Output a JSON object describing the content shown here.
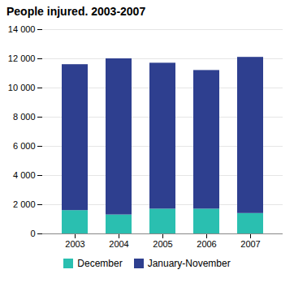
{
  "chart_data": {
    "type": "bar",
    "stacked": true,
    "title": "People injured. 2003-2007",
    "categories": [
      "2003",
      "2004",
      "2005",
      "2006",
      "2007"
    ],
    "series": [
      {
        "name": "December",
        "color": "#2abfb0",
        "values": [
          1600,
          1300,
          1700,
          1700,
          1400
        ]
      },
      {
        "name": "January-November",
        "color": "#2e3f8f",
        "values": [
          10000,
          10700,
          10000,
          9500,
          10700
        ]
      }
    ],
    "ylim": [
      0,
      14000
    ],
    "yticks": [
      0,
      {
        "value": 2000,
        "label": "2 000"
      },
      {
        "value": 4000,
        "label": "4 000"
      },
      {
        "value": 6000,
        "label": "6 000"
      },
      {
        "value": 8000,
        "label": "8 000"
      },
      {
        "value": 10000,
        "label": "10 000"
      },
      {
        "value": 12000,
        "label": "12 000"
      },
      {
        "value": 14000,
        "label": "14 000"
      }
    ],
    "grid": true,
    "legend": "bottom"
  }
}
